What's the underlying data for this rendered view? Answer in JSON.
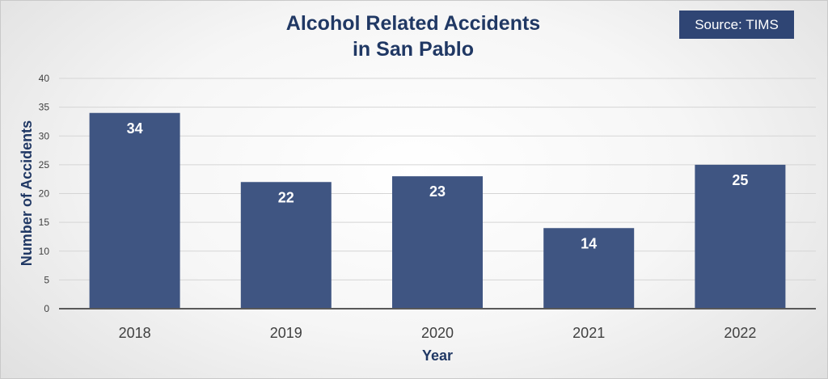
{
  "chart_data": {
    "type": "bar",
    "title": "Alcohol Related Accidents\nin San Pablo",
    "source_label": "Source: TIMS",
    "xlabel": "Year",
    "ylabel": "Number of Accidents",
    "categories": [
      "2018",
      "2019",
      "2020",
      "2021",
      "2022"
    ],
    "values": [
      34,
      22,
      23,
      14,
      25
    ],
    "ylim": [
      0,
      40
    ],
    "yticks": [
      0,
      5,
      10,
      15,
      20,
      25,
      30,
      35,
      40
    ],
    "grid": true,
    "legend": "none",
    "data_labels": true,
    "colors": {
      "bar": "#3f5582",
      "title": "#203864",
      "badge": "#2f4574",
      "data_label": "#ffffff",
      "tick_label": "#404040",
      "gridline": "#d5d5d5",
      "axis_line": "#595959"
    }
  }
}
